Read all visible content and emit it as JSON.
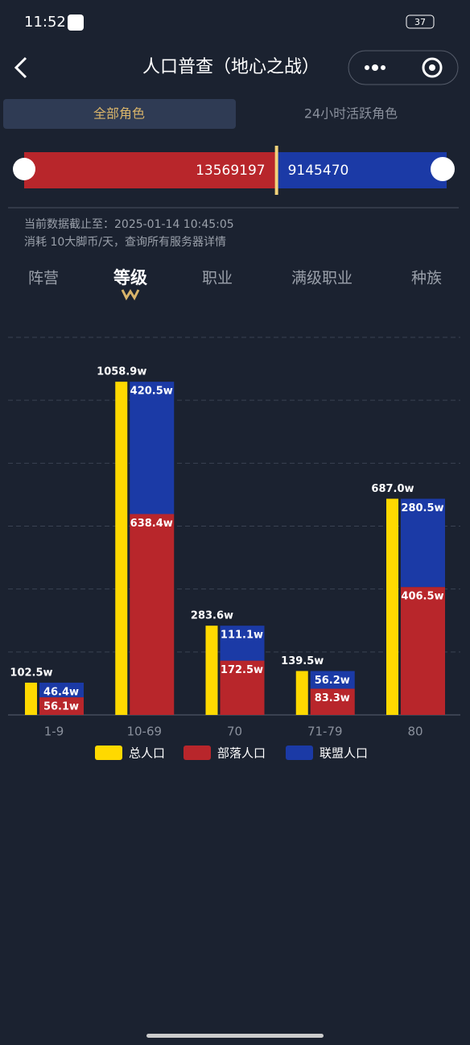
{
  "status_bar": {
    "time": "11:52",
    "battery": "37"
  },
  "header": {
    "title": "人口普查（地心之战）"
  },
  "tabs": [
    "全部角色",
    "24小时活跃角色"
  ],
  "faction_bar": {
    "horde": 13569197,
    "alliance": 9145470
  },
  "info": [
    "当前数据截止至：2025-01-14 10:45:05",
    "消耗 10大脚币/天，查询所有服务器详情"
  ],
  "sub_tabs": [
    "阵营",
    "等级",
    "职业",
    "满级职业",
    "种族"
  ],
  "chart_data": {
    "type": "bar",
    "stacked_series": [
      1,
      2
    ],
    "categories": [
      "1-9",
      "10-69",
      "70",
      "71-79",
      "80"
    ],
    "series": [
      {
        "name": "总人口",
        "color": "#ffd900",
        "values": [
          102.5,
          1058.9,
          283.6,
          139.5,
          687
        ],
        "value_labels": [
          "102.5w",
          "1058.9w",
          "283.6w",
          "139.5w",
          "687.0w"
        ]
      },
      {
        "name": "部落人口",
        "color": "#b8262b",
        "values": [
          56.1,
          638.4,
          172.5,
          83.3,
          406.5
        ],
        "value_labels": [
          "56.1w",
          "638.4w",
          "172.5w",
          "83.3w",
          "406.5w"
        ]
      },
      {
        "name": "联盟人口",
        "color": "#1b3aa6",
        "values": [
          46.4,
          420.5,
          111.1,
          56.2,
          280.5
        ],
        "value_labels": [
          "46.4w",
          "420.5w",
          "111.1w",
          "56.2w",
          "280.5w"
        ]
      }
    ],
    "ylim": [
      0,
      1200
    ],
    "yticks": [
      0,
      200,
      400,
      600,
      800,
      1000,
      1200
    ],
    "grid": true
  }
}
